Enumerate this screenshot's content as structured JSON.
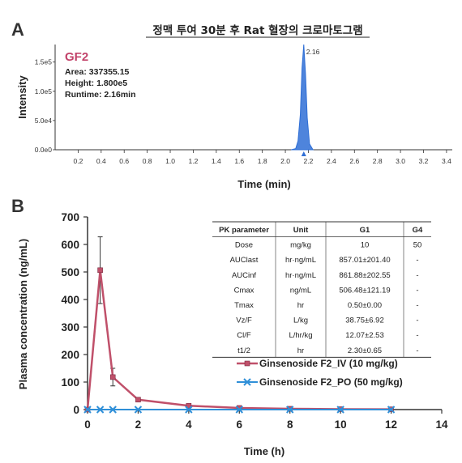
{
  "colors": {
    "chromatogram": "#2f6fd6",
    "iv": "#c0506a",
    "po": "#2f8fd8",
    "axis": "#333333"
  },
  "panel_a": {
    "letter": "A",
    "title": "정맥 투여 30분 후 Rat 혈장의 크로마토그램",
    "compound": "GF2",
    "area_text": "Area: 337355.15",
    "height_text": "Height: 1.800e5",
    "runtime_text": "Runtime: 2.16min",
    "peak_label": "2.16",
    "ylabel": "Intensity",
    "xlabel": "Time (min)"
  },
  "panel_b": {
    "letter": "B",
    "ylabel": "Plasma concentration (ng/mL)",
    "xlabel": "Time (h)",
    "table": {
      "headers": [
        "PK parameter",
        "Unit",
        "G1",
        "G4"
      ],
      "rows": [
        [
          "Dose",
          "mg/kg",
          "10",
          "50"
        ],
        [
          "AUClast",
          "hr·ng/mL",
          "857.01±201.40",
          "-"
        ],
        [
          "AUCinf",
          "hr·ng/mL",
          "861.88±202.55",
          "-"
        ],
        [
          "Cmax",
          "ng/mL",
          "506.48±121.19",
          "-"
        ],
        [
          "Tmax",
          "hr",
          "0.50±0.00",
          "-"
        ],
        [
          "Vz/F",
          "L/kg",
          "38.75±6.92",
          "-"
        ],
        [
          "Cl/F",
          "L/hr/kg",
          "12.07±2.53",
          "-"
        ],
        [
          "t1/2",
          "hr",
          "2.30±0.65",
          "-"
        ]
      ]
    }
  },
  "chart_data": [
    {
      "type": "line",
      "title": "정맥 투여 30분 후 Rat 혈장의 크로마토그램",
      "xlabel": "Time (min)",
      "ylabel": "Intensity",
      "xlim": [
        0,
        3.45
      ],
      "ylim": [
        0,
        180000
      ],
      "x_ticks": [
        0.2,
        0.4,
        0.6,
        0.8,
        1.0,
        1.2,
        1.4,
        1.6,
        1.8,
        2.0,
        2.2,
        2.4,
        2.6,
        2.8,
        3.0,
        3.2,
        3.4
      ],
      "x_tick_labels": [
        "0.2",
        "0.4",
        "0.6",
        "0.8",
        "1.0",
        "1.2",
        "1.4",
        "1.6",
        "1.8",
        "2.0",
        "2.2",
        "2.4",
        "2.6",
        "2.8",
        "3.0",
        "3.2",
        "3.4"
      ],
      "y_ticks": [
        0,
        50000,
        100000,
        150000
      ],
      "y_tick_labels": [
        "0.0e0",
        "5.0e4",
        "1.0e5",
        "1.5e5"
      ],
      "series": [
        {
          "x": [
            2.05,
            2.09,
            2.11,
            2.13,
            2.145,
            2.16,
            2.175,
            2.19,
            2.21,
            2.24
          ],
          "y": [
            0,
            2000,
            15000,
            60000,
            140000,
            180000,
            130000,
            55000,
            10000,
            0
          ]
        }
      ],
      "annotations": [
        "2.16"
      ]
    },
    {
      "type": "line",
      "xlabel": "Time (h)",
      "ylabel": "Plasma concentration (ng/mL)",
      "xlim": [
        0,
        14
      ],
      "ylim": [
        0,
        700
      ],
      "x_ticks": [
        0,
        2,
        4,
        6,
        8,
        10,
        12,
        14
      ],
      "y_ticks": [
        0,
        100,
        200,
        300,
        400,
        500,
        600,
        700
      ],
      "legend": "right",
      "series": [
        {
          "name": "Ginsenoside F2_IV (10 mg/kg)",
          "x": [
            0,
            0.5,
            1,
            2,
            4,
            6,
            8,
            10,
            12
          ],
          "y": [
            0,
            506.48,
            118,
            36,
            14,
            6,
            3,
            1.5,
            1
          ],
          "error": [
            0,
            121.19,
            32,
            8,
            4,
            2,
            1,
            0.5,
            0.3
          ]
        },
        {
          "name": "Ginsenoside F2_PO (50 mg/kg)",
          "x": [
            0,
            0.5,
            1,
            2,
            4,
            6,
            8,
            10,
            12
          ],
          "y": [
            0,
            0,
            0,
            0,
            0,
            0,
            0,
            0,
            0
          ]
        }
      ]
    }
  ]
}
